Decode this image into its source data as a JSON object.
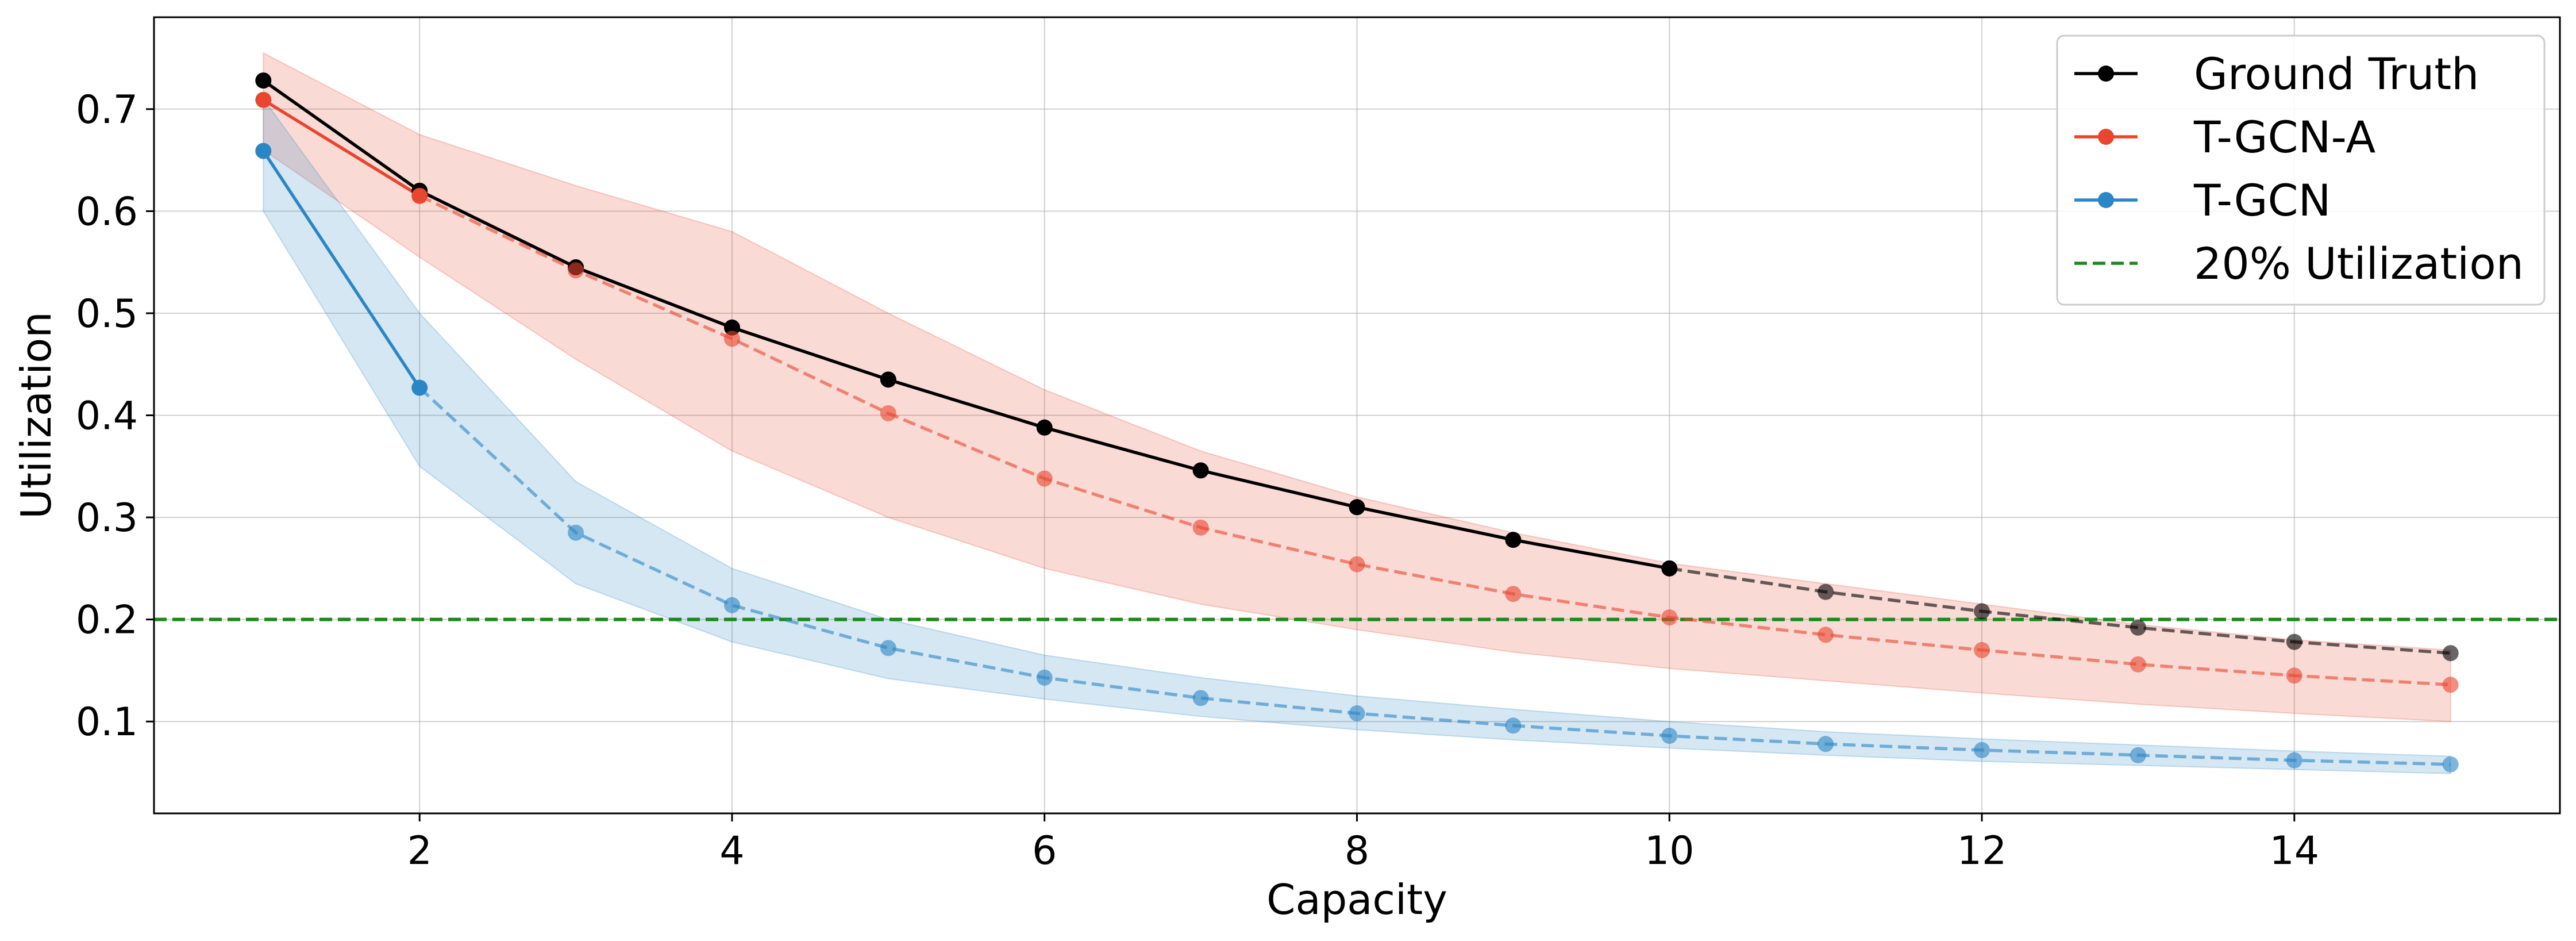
{
  "chart_data": {
    "type": "line",
    "xlabel": "Capacity",
    "ylabel": "Utilization",
    "xlim": [
      0.3,
      15.7
    ],
    "ylim": [
      0.01,
      0.79
    ],
    "x_ticks": [
      2,
      4,
      6,
      8,
      10,
      12,
      14
    ],
    "y_ticks": [
      0.1,
      0.2,
      0.3,
      0.4,
      0.5,
      0.6,
      0.7
    ],
    "grid": true,
    "legend_position": "top-right",
    "x": [
      1,
      2,
      3,
      4,
      5,
      6,
      7,
      8,
      9,
      10,
      11,
      12,
      13,
      14,
      15
    ],
    "series": [
      {
        "name": "Ground Truth",
        "color": "#000000",
        "values": [
          0.728,
          0.62,
          0.545,
          0.486,
          0.435,
          0.388,
          0.346,
          0.31,
          0.278,
          0.25,
          0.227,
          0.208,
          0.192,
          0.178,
          0.167
        ],
        "solid_until": 10
      },
      {
        "name": "T-GCN-A",
        "color": "#e8462e",
        "values": [
          0.709,
          0.615,
          0.542,
          0.475,
          0.402,
          0.338,
          0.29,
          0.254,
          0.225,
          0.202,
          0.185,
          0.17,
          0.156,
          0.145,
          0.136
        ],
        "band_upper": [
          0.755,
          0.675,
          0.625,
          0.58,
          0.5,
          0.425,
          0.365,
          0.32,
          0.285,
          0.255,
          0.235,
          0.215,
          0.195,
          0.18,
          0.17
        ],
        "band_lower": [
          0.66,
          0.555,
          0.455,
          0.365,
          0.3,
          0.25,
          0.215,
          0.19,
          0.168,
          0.152,
          0.14,
          0.128,
          0.117,
          0.108,
          0.1
        ],
        "solid_until": 2
      },
      {
        "name": "T-GCN",
        "color": "#2b86c5",
        "values": [
          0.659,
          0.427,
          0.285,
          0.214,
          0.172,
          0.143,
          0.123,
          0.108,
          0.096,
          0.086,
          0.078,
          0.072,
          0.067,
          0.062,
          0.058
        ],
        "band_upper": [
          0.71,
          0.5,
          0.335,
          0.25,
          0.2,
          0.165,
          0.143,
          0.125,
          0.112,
          0.1,
          0.09,
          0.083,
          0.077,
          0.071,
          0.066
        ],
        "band_lower": [
          0.6,
          0.35,
          0.235,
          0.178,
          0.142,
          0.122,
          0.105,
          0.092,
          0.082,
          0.074,
          0.067,
          0.061,
          0.057,
          0.053,
          0.049
        ],
        "solid_until": 2
      }
    ],
    "reference_line": {
      "name": "20% Utilization",
      "y": 0.2,
      "color": "#1a8a1a"
    }
  }
}
